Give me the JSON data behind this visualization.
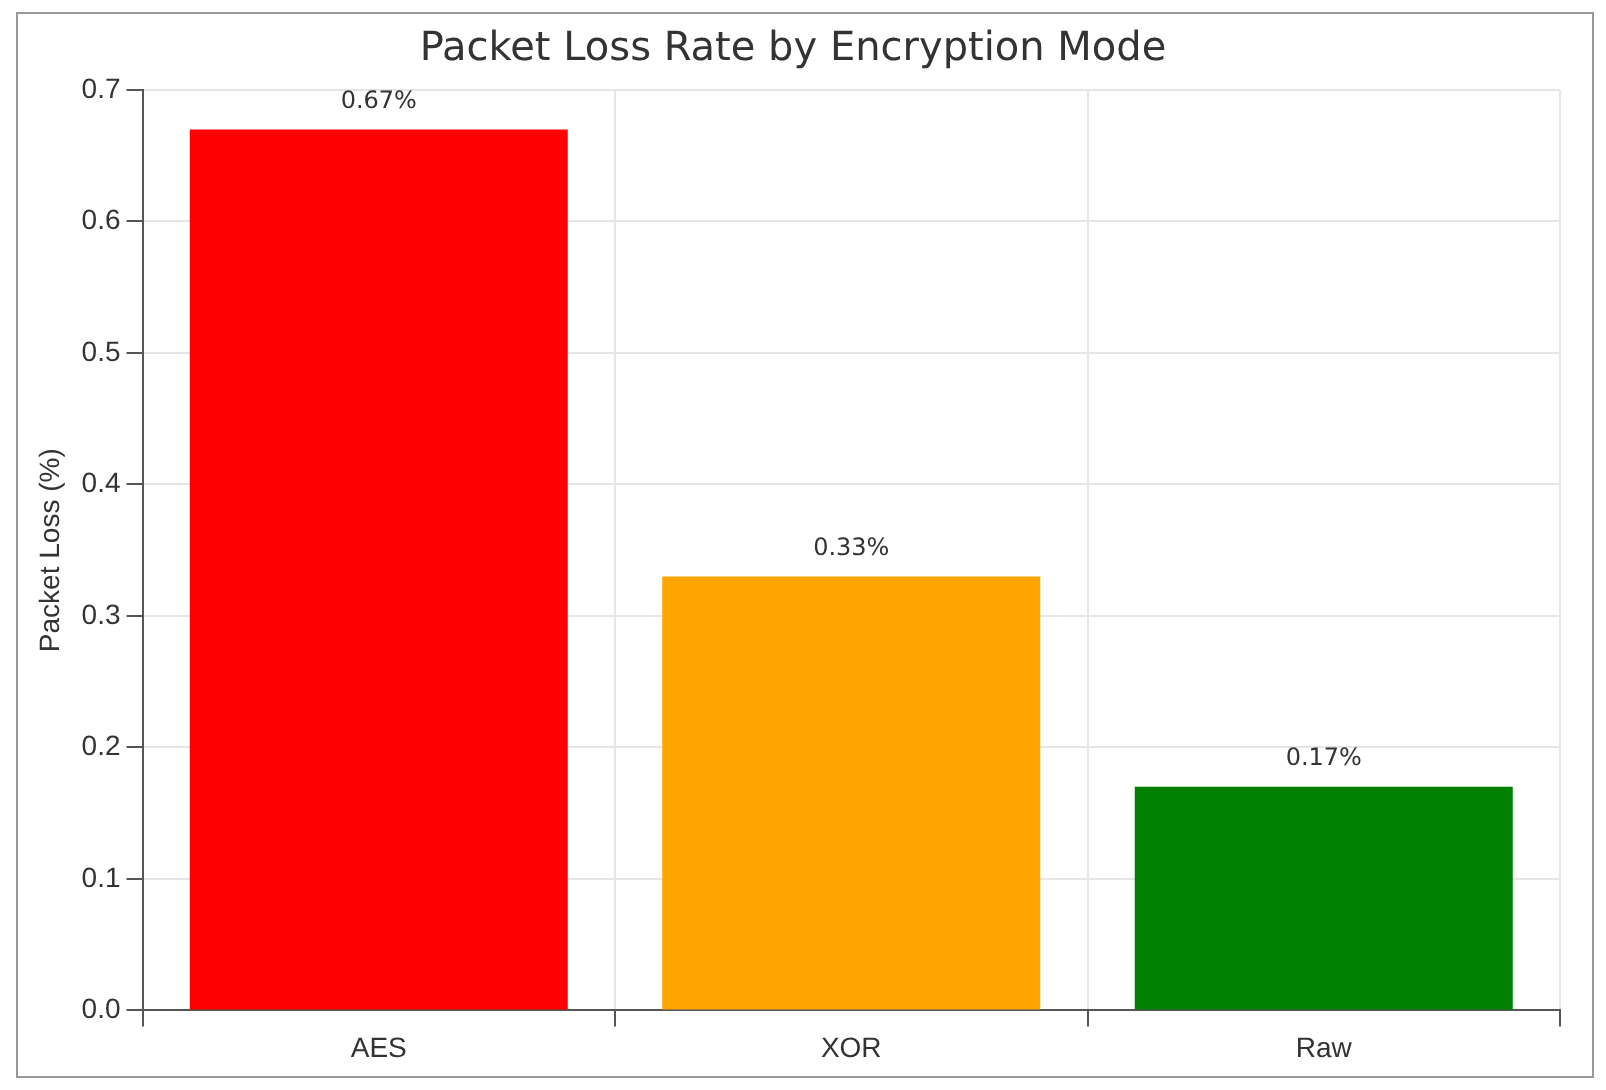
{
  "chart_data": {
    "type": "bar",
    "title": "Packet Loss Rate by Encryption Mode",
    "ylabel": "Packet Loss (%)",
    "categories": [
      "AES",
      "XOR",
      "Raw"
    ],
    "values": [
      0.67,
      0.33,
      0.17
    ],
    "colors": [
      "#ff0000",
      "#ffa500",
      "#008000"
    ],
    "value_labels": [
      "0.67%",
      "0.33%",
      "0.17%"
    ],
    "ylim": [
      0,
      0.7
    ],
    "yticks": [
      {
        "value": 0,
        "label": "0.0"
      },
      0.1,
      0.2,
      0.3,
      0.4,
      0.5,
      0.6,
      0.7
    ],
    "grid": true
  }
}
